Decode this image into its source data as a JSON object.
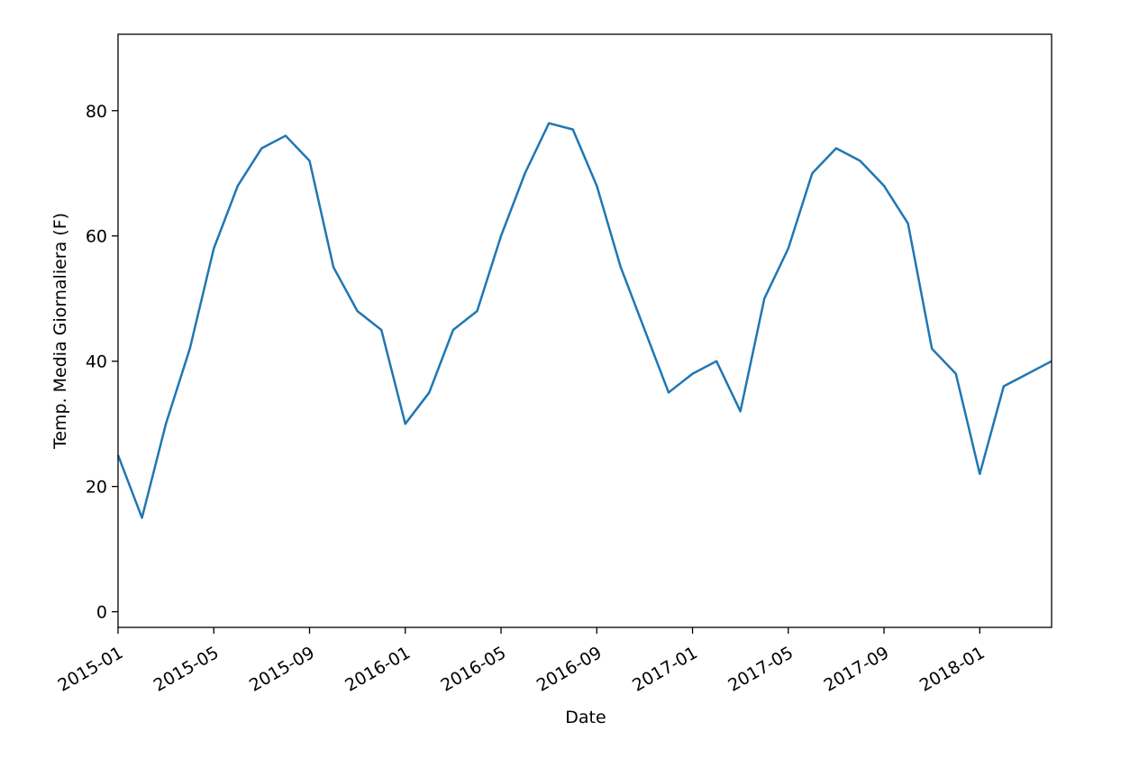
{
  "chart_data": {
    "type": "line",
    "xlabel": "Date",
    "ylabel": "Temp. Media Giornaliera (F)",
    "x": [
      "2015-01",
      "2015-02",
      "2015-03",
      "2015-04",
      "2015-05",
      "2015-06",
      "2015-07",
      "2015-08",
      "2015-09",
      "2015-10",
      "2015-11",
      "2015-12",
      "2016-01",
      "2016-02",
      "2016-03",
      "2016-04",
      "2016-05",
      "2016-06",
      "2016-07",
      "2016-08",
      "2016-09",
      "2016-10",
      "2016-11",
      "2016-12",
      "2017-01",
      "2017-02",
      "2017-03",
      "2017-04",
      "2017-05",
      "2017-06",
      "2017-07",
      "2017-08",
      "2017-09",
      "2017-10",
      "2017-11",
      "2017-12",
      "2018-01",
      "2018-02",
      "2018-03",
      "2018-04"
    ],
    "series": [
      {
        "color": "#1f77b4",
        "values": [
          25,
          15,
          30,
          42,
          58,
          68,
          74,
          76,
          72,
          55,
          48,
          45,
          30,
          35,
          45,
          48,
          60,
          70,
          78,
          77,
          68,
          55,
          45,
          35,
          38,
          40,
          32,
          50,
          58,
          70,
          74,
          72,
          68,
          62,
          42,
          38,
          22,
          36,
          38,
          40
        ]
      }
    ],
    "xlim": [
      "2015-01",
      "2018-04"
    ],
    "xticks": [
      "2015-01",
      "2015-05",
      "2015-09",
      "2016-01",
      "2016-05",
      "2016-09",
      "2017-01",
      "2017-05",
      "2017-09",
      "2018-01"
    ],
    "ylim": [
      -2.5,
      92.2
    ],
    "yticks": [
      0,
      20,
      40,
      60,
      80
    ]
  }
}
